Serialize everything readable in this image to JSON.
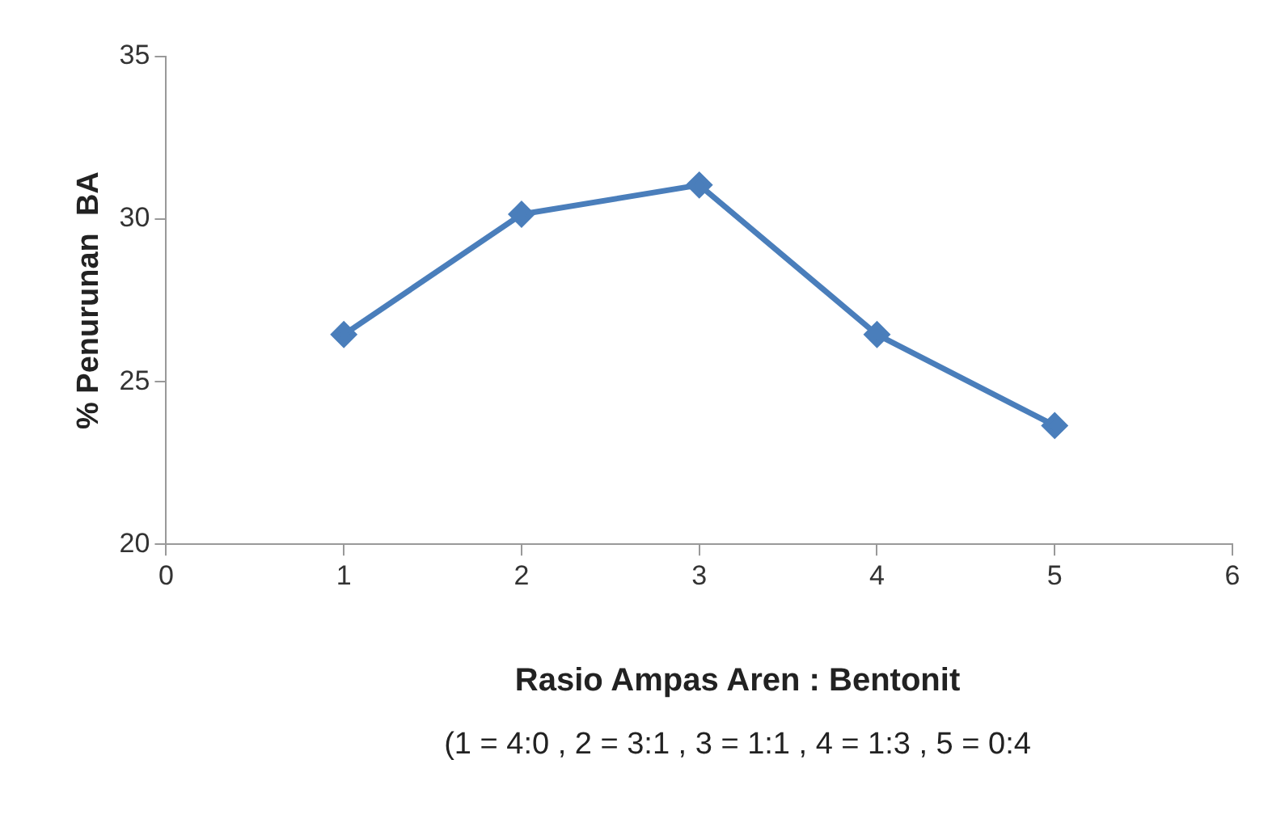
{
  "chart_data": {
    "type": "line",
    "xlabel": "Rasio Ampas Aren : Bentonit",
    "ylabel": "% Penurunan  BA",
    "annotations": [
      "(1 = 4:0 , 2 = 3:1 , 3 = 1:1 , 4 = 1:3 , 5 = 0:4"
    ],
    "x": [
      1,
      2,
      3,
      4,
      5
    ],
    "series": [
      {
        "color": "#4a7ebb",
        "values": [
          26.45,
          30.15,
          31.05,
          26.45,
          23.65
        ]
      }
    ],
    "xlim": [
      0,
      6
    ],
    "xticks": [
      0,
      1,
      2,
      3,
      4,
      5,
      6
    ],
    "ylim": [
      20,
      35
    ],
    "yticks": [
      20,
      25,
      30,
      35
    ],
    "grid": false,
    "legend": false,
    "marker": "diamond",
    "line_style": "solid"
  }
}
